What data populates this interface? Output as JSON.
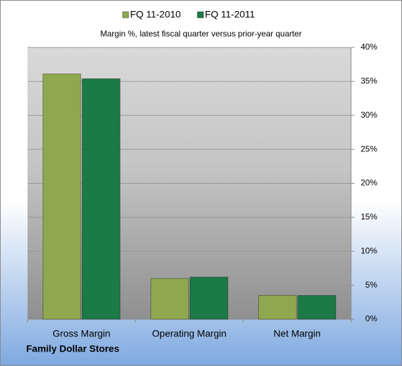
{
  "chart_data": {
    "type": "bar",
    "subtitle": "Margin %,  latest fiscal quarter versus prior-year quarter",
    "footer": "Family Dollar Stores",
    "categories": [
      "Gross Margin",
      "Operating Margin",
      "Net Margin"
    ],
    "series": [
      {
        "name": "FQ 11-2010",
        "color": "#8fa84f",
        "values": [
          36.1,
          6.0,
          3.5
        ]
      },
      {
        "name": "FQ 11-2011",
        "color": "#1b7a45",
        "values": [
          35.4,
          6.2,
          3.5
        ]
      }
    ],
    "ylim": [
      0,
      40
    ],
    "yticks": [
      {
        "value": 0,
        "label": "0%"
      },
      {
        "value": 5,
        "label": "5%"
      },
      {
        "value": 10,
        "label": "10%"
      },
      {
        "value": 15,
        "label": "15%"
      },
      {
        "value": 20,
        "label": "20%"
      },
      {
        "value": 25,
        "label": "25%"
      },
      {
        "value": 30,
        "label": "30%"
      },
      {
        "value": 35,
        "label": "35%"
      },
      {
        "value": 40,
        "label": "40%"
      }
    ],
    "grid": true,
    "legend": "top"
  }
}
